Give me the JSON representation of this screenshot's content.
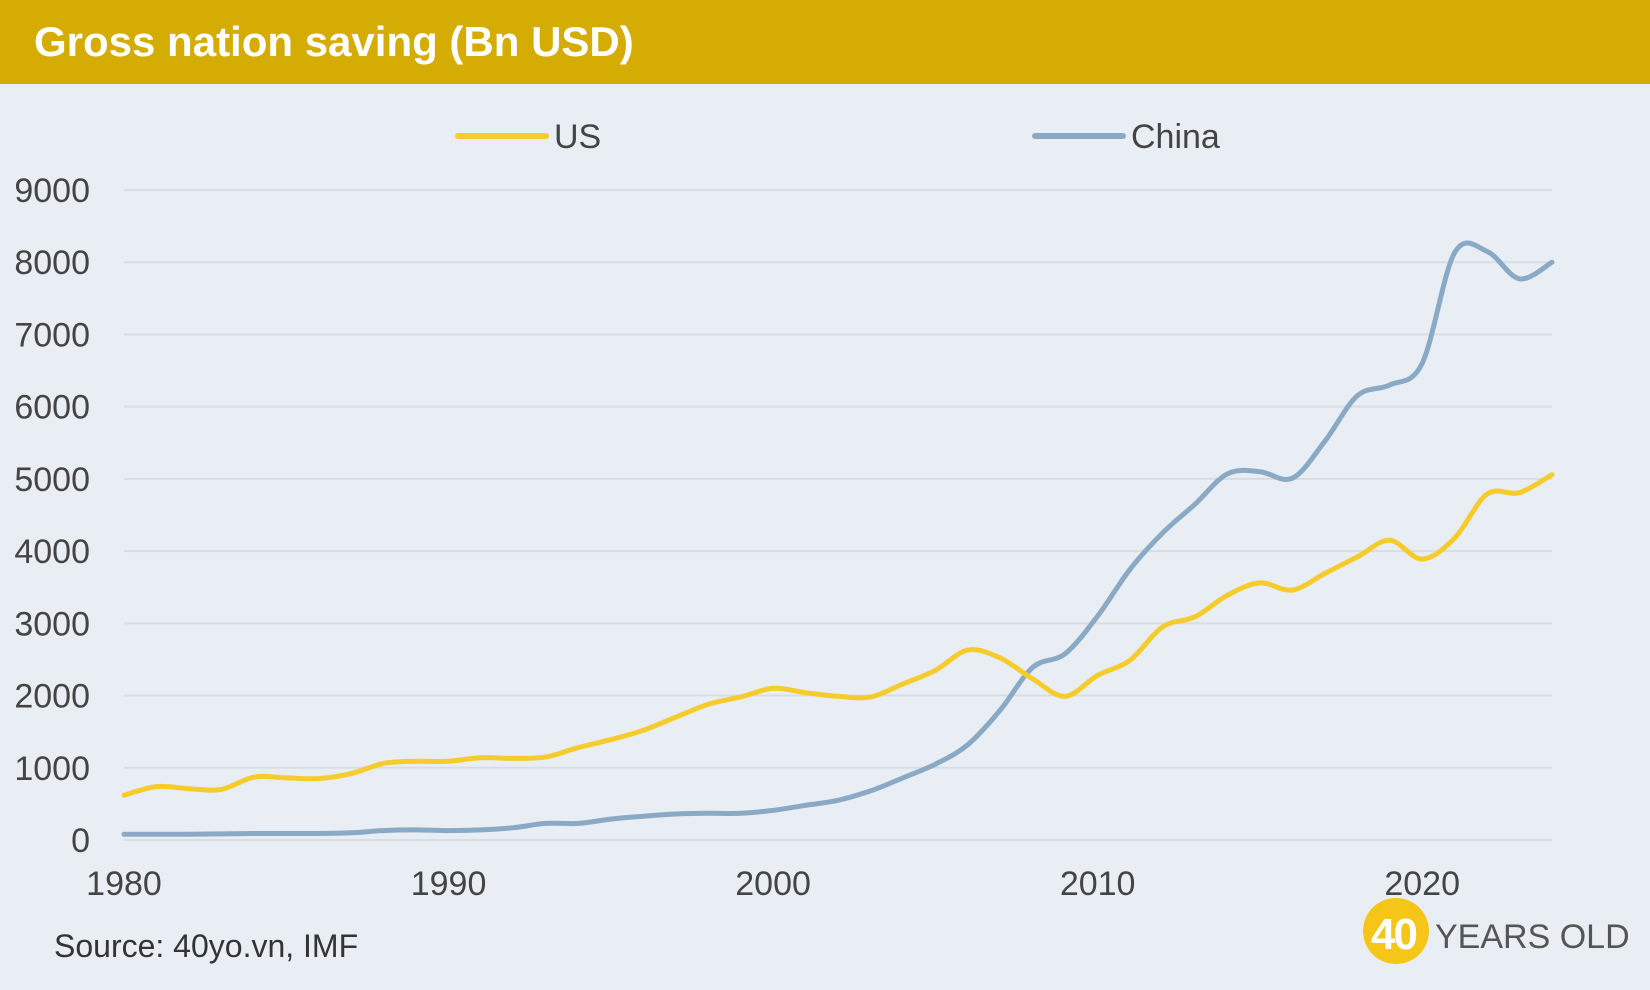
{
  "header": {
    "title": "Gross nation saving (Bn USD)"
  },
  "footer": {
    "source": "Source: 40yo.vn, IMF"
  },
  "brand": {
    "number": "40",
    "text": "YEARS OLD",
    "color": "#f5c518"
  },
  "colors": {
    "us": "#f5cc2c",
    "china": "#8aa9c4",
    "grid": "#d8dde2",
    "header": "#d4ac04"
  },
  "chart_data": {
    "type": "line",
    "title": "Gross nation saving (Bn USD)",
    "xlabel": "",
    "ylabel": "",
    "xlim": [
      1980,
      2024
    ],
    "ylim": [
      0,
      9000
    ],
    "yticks": [
      0,
      1000,
      2000,
      3000,
      4000,
      5000,
      6000,
      7000,
      8000,
      9000
    ],
    "xticks": [
      1980,
      1990,
      2000,
      2010,
      2020
    ],
    "grid": true,
    "legend": "top",
    "x": [
      1980,
      1981,
      1982,
      1983,
      1984,
      1985,
      1986,
      1987,
      1988,
      1989,
      1990,
      1991,
      1992,
      1993,
      1994,
      1995,
      1996,
      1997,
      1998,
      1999,
      2000,
      2001,
      2002,
      2003,
      2004,
      2005,
      2006,
      2007,
      2008,
      2009,
      2010,
      2011,
      2012,
      2013,
      2014,
      2015,
      2016,
      2017,
      2018,
      2019,
      2020,
      2021,
      2022,
      2023,
      2024
    ],
    "series": [
      {
        "name": "US",
        "color": "#f5cc2c",
        "values": [
          620,
          740,
          710,
          700,
          870,
          860,
          850,
          920,
          1060,
          1090,
          1090,
          1140,
          1130,
          1150,
          1280,
          1390,
          1520,
          1700,
          1880,
          1980,
          2100,
          2040,
          1990,
          1980,
          2160,
          2350,
          2630,
          2520,
          2230,
          1990,
          2280,
          2490,
          2950,
          3090,
          3390,
          3560,
          3460,
          3690,
          3920,
          4150,
          3890,
          4180,
          4790,
          4810,
          5060
        ]
      },
      {
        "name": "China",
        "color": "#8aa9c4",
        "values": [
          80,
          80,
          80,
          85,
          90,
          90,
          90,
          100,
          130,
          140,
          130,
          140,
          170,
          230,
          230,
          290,
          330,
          360,
          370,
          370,
          410,
          480,
          550,
          680,
          860,
          1050,
          1320,
          1800,
          2390,
          2580,
          3100,
          3750,
          4250,
          4650,
          5070,
          5100,
          5010,
          5520,
          6150,
          6300,
          6600,
          8130,
          8150,
          7770,
          8000
        ]
      }
    ]
  }
}
